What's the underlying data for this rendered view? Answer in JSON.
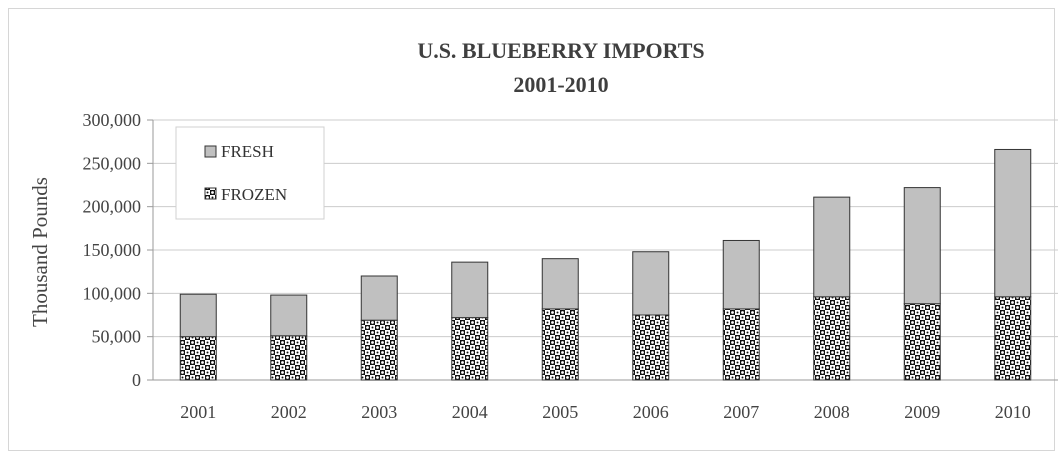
{
  "chart_data": {
    "type": "bar",
    "stacked": true,
    "title": "U.S. BLUEBERRY IMPORTS",
    "subtitle": "2001-2010",
    "ylabel": "Thousand Pounds",
    "xlabel": "",
    "ylim": [
      0,
      300000
    ],
    "y_ticks": [
      "0",
      "50,000",
      "100,000",
      "150,000",
      "200,000",
      "250,000",
      "300,000"
    ],
    "categories": [
      "2001",
      "2002",
      "2003",
      "2004",
      "2005",
      "2006",
      "2007",
      "2008",
      "2009",
      "2010"
    ],
    "series": [
      {
        "name": "FROZEN",
        "pattern": "checkered",
        "values": [
          50000,
          51000,
          69000,
          72000,
          82000,
          75000,
          82000,
          96000,
          88000,
          96000
        ]
      },
      {
        "name": "FRESH",
        "color": "#c0c0c0",
        "values": [
          49000,
          47000,
          51000,
          64000,
          58000,
          73000,
          79000,
          115000,
          134000,
          170000
        ]
      }
    ],
    "legend": {
      "position": "top-left",
      "entries": [
        "FRESH",
        "FROZEN"
      ]
    },
    "grid": true
  }
}
